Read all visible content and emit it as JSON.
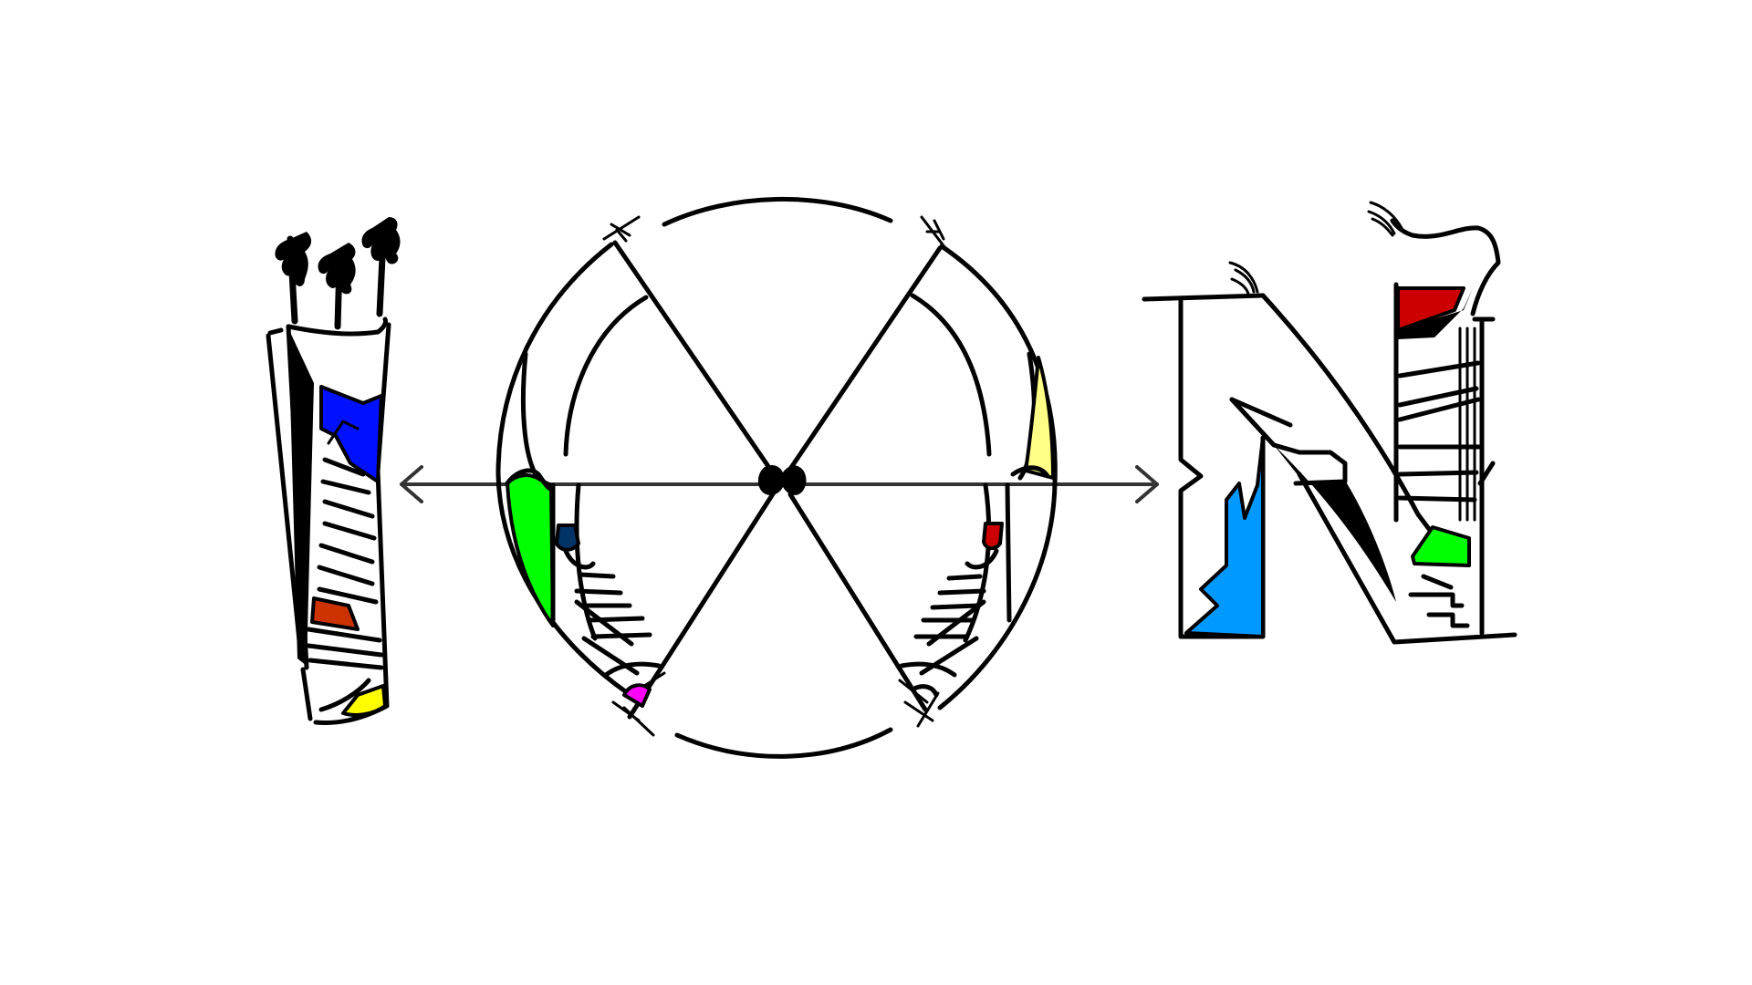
{
  "artwork": {
    "subject": "ion-logo",
    "letters": [
      {
        "id": "I",
        "motif": "quiver-of-arrows"
      },
      {
        "id": "O",
        "motif": "crossed-arrows-and-ice-skates"
      },
      {
        "id": "N",
        "motif": "buildings-and-ski-slope"
      }
    ],
    "colors": {
      "stroke": "#000000",
      "axis": "#333333",
      "blue": "#0011ff",
      "sky_blue": "#0099ff",
      "red": "#cc0000",
      "orange_red": "#cc3300",
      "green": "#00ff00",
      "yellow": "#ffff00",
      "pale_yellow": "#ffff88",
      "navy": "#003366",
      "magenta": "#ff00ff"
    }
  }
}
